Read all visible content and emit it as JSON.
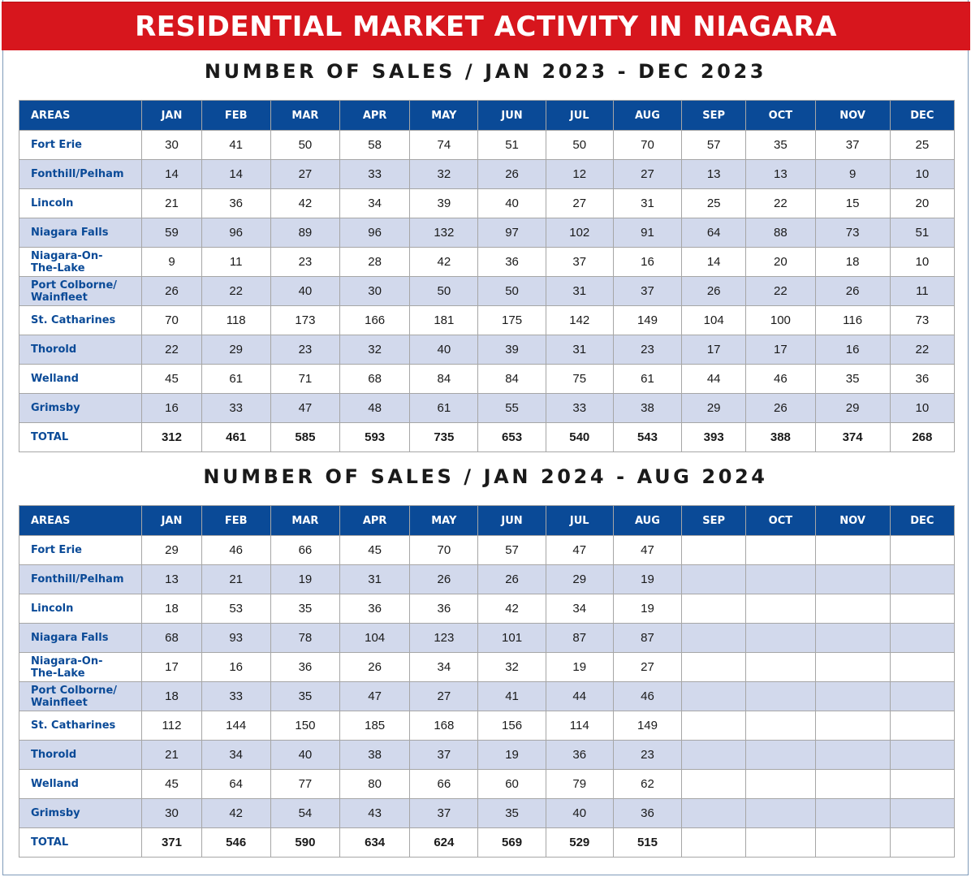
{
  "banner": {
    "title": "RESIDENTIAL MARKET ACTIVITY IN NIAGARA"
  },
  "tables": [
    {
      "title": "NUMBER OF SALES / JAN 2023 - DEC 2023",
      "headers": [
        "AREAS",
        "JAN",
        "FEB",
        "MAR",
        "APR",
        "MAY",
        "JUN",
        "JUL",
        "AUG",
        "SEP",
        "OCT",
        "NOV",
        "DEC"
      ],
      "rows": [
        {
          "area": "Fort Erie",
          "values": [
            "30",
            "41",
            "50",
            "58",
            "74",
            "51",
            "50",
            "70",
            "57",
            "35",
            "37",
            "25"
          ]
        },
        {
          "area": "Fonthill/Pelham",
          "values": [
            "14",
            "14",
            "27",
            "33",
            "32",
            "26",
            "12",
            "27",
            "13",
            "13",
            "9",
            "10"
          ]
        },
        {
          "area": "Lincoln",
          "values": [
            "21",
            "36",
            "42",
            "34",
            "39",
            "40",
            "27",
            "31",
            "25",
            "22",
            "15",
            "20"
          ]
        },
        {
          "area": "Niagara Falls",
          "values": [
            "59",
            "96",
            "89",
            "96",
            "132",
            "97",
            "102",
            "91",
            "64",
            "88",
            "73",
            "51"
          ]
        },
        {
          "area": "Niagara-On-\nThe-Lake",
          "values": [
            "9",
            "11",
            "23",
            "28",
            "42",
            "36",
            "37",
            "16",
            "14",
            "20",
            "18",
            "10"
          ]
        },
        {
          "area": "Port Colborne/\nWainfleet",
          "values": [
            "26",
            "22",
            "40",
            "30",
            "50",
            "50",
            "31",
            "37",
            "26",
            "22",
            "26",
            "11"
          ]
        },
        {
          "area": "St. Catharines",
          "values": [
            "70",
            "118",
            "173",
            "166",
            "181",
            "175",
            "142",
            "149",
            "104",
            "100",
            "116",
            "73"
          ]
        },
        {
          "area": "Thorold",
          "values": [
            "22",
            "29",
            "23",
            "32",
            "40",
            "39",
            "31",
            "23",
            "17",
            "17",
            "16",
            "22"
          ]
        },
        {
          "area": "Welland",
          "values": [
            "45",
            "61",
            "71",
            "68",
            "84",
            "84",
            "75",
            "61",
            "44",
            "46",
            "35",
            "36"
          ]
        },
        {
          "area": "Grimsby",
          "values": [
            "16",
            "33",
            "47",
            "48",
            "61",
            "55",
            "33",
            "38",
            "29",
            "26",
            "29",
            "10"
          ]
        }
      ],
      "total": {
        "area": "TOTAL",
        "values": [
          "312",
          "461",
          "585",
          "593",
          "735",
          "653",
          "540",
          "543",
          "393",
          "388",
          "374",
          "268"
        ]
      }
    },
    {
      "title": "NUMBER OF SALES / JAN 2024 - AUG 2024",
      "headers": [
        "AREAS",
        "JAN",
        "FEB",
        "MAR",
        "APR",
        "MAY",
        "JUN",
        "JUL",
        "AUG",
        "SEP",
        "OCT",
        "NOV",
        "DEC"
      ],
      "rows": [
        {
          "area": "Fort Erie",
          "values": [
            "29",
            "46",
            "66",
            "45",
            "70",
            "57",
            "47",
            "47",
            "",
            "",
            "",
            ""
          ]
        },
        {
          "area": "Fonthill/Pelham",
          "values": [
            "13",
            "21",
            "19",
            "31",
            "26",
            "26",
            "29",
            "19",
            "",
            "",
            "",
            ""
          ]
        },
        {
          "area": "Lincoln",
          "values": [
            "18",
            "53",
            "35",
            "36",
            "36",
            "42",
            "34",
            "19",
            "",
            "",
            "",
            ""
          ]
        },
        {
          "area": "Niagara Falls",
          "values": [
            "68",
            "93",
            "78",
            "104",
            "123",
            "101",
            "87",
            "87",
            "",
            "",
            "",
            ""
          ]
        },
        {
          "area": "Niagara-On-\nThe-Lake",
          "values": [
            "17",
            "16",
            "36",
            "26",
            "34",
            "32",
            "19",
            "27",
            "",
            "",
            "",
            ""
          ]
        },
        {
          "area": "Port Colborne/\nWainfleet",
          "values": [
            "18",
            "33",
            "35",
            "47",
            "27",
            "41",
            "44",
            "46",
            "",
            "",
            "",
            ""
          ]
        },
        {
          "area": "St. Catharines",
          "values": [
            "112",
            "144",
            "150",
            "185",
            "168",
            "156",
            "114",
            "149",
            "",
            "",
            "",
            ""
          ]
        },
        {
          "area": "Thorold",
          "values": [
            "21",
            "34",
            "40",
            "38",
            "37",
            "19",
            "36",
            "23",
            "",
            "",
            "",
            ""
          ]
        },
        {
          "area": "Welland",
          "values": [
            "45",
            "64",
            "77",
            "80",
            "66",
            "60",
            "79",
            "62",
            "",
            "",
            "",
            ""
          ]
        },
        {
          "area": "Grimsby",
          "values": [
            "30",
            "42",
            "54",
            "43",
            "37",
            "35",
            "40",
            "36",
            "",
            "",
            "",
            ""
          ]
        }
      ],
      "total": {
        "area": "TOTAL",
        "values": [
          "371",
          "546",
          "590",
          "634",
          "624",
          "569",
          "529",
          "515",
          "",
          "",
          "",
          ""
        ]
      }
    }
  ]
}
